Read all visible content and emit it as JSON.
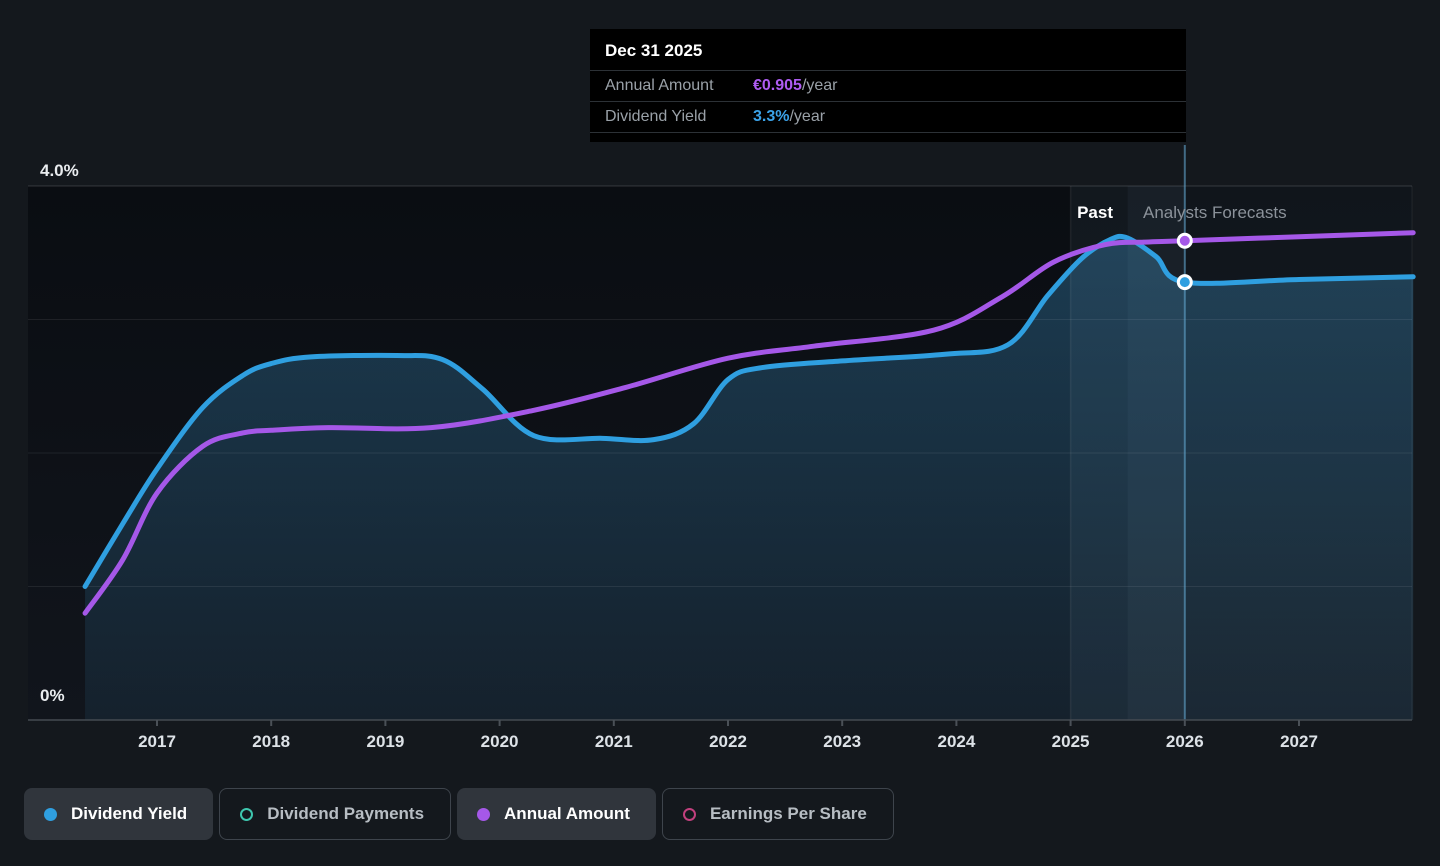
{
  "page": {
    "background": "#14181d"
  },
  "tooltip": {
    "title": "Dec 31 2025",
    "rows": [
      {
        "label": "Annual Amount",
        "value": "€0.905",
        "suffix": "/year",
        "value_color": "#ae5cf2"
      },
      {
        "label": "Dividend Yield",
        "value": "3.3%",
        "suffix": "/year",
        "value_color": "#3ba2e8"
      }
    ]
  },
  "annotations": {
    "past_label": "Past",
    "forecast_label": "Analysts Forecasts"
  },
  "axes": {
    "y_top_label": "4.0%",
    "y_bottom_label": "0%"
  },
  "legend": [
    {
      "label": "Dividend Yield",
      "style": "filled",
      "color": "#2f9fe0",
      "active": true
    },
    {
      "label": "Dividend Payments",
      "style": "ring",
      "color": "#3ec6ae",
      "active": false
    },
    {
      "label": "Annual Amount",
      "style": "filled",
      "color": "#a558e8",
      "active": true
    },
    {
      "label": "Earnings Per Share",
      "style": "ring",
      "color": "#c2407e",
      "active": false
    }
  ],
  "chart_data": {
    "type": "area",
    "x_domain": [
      2016.37,
      2028.0
    ],
    "x_ticks": [
      2017,
      2018,
      2019,
      2020,
      2021,
      2022,
      2023,
      2024,
      2025,
      2026,
      2027
    ],
    "y_axis": {
      "unit": "%",
      "min": 0,
      "max": 4,
      "gridlines_pct": [
        1,
        2,
        3,
        4
      ],
      "labels_shown": [
        "4.0%",
        "0%"
      ]
    },
    "divider_year": 2025.5,
    "hover_band_years": [
      2025,
      2026
    ],
    "marker_year": 2026,
    "legend_position": "bottom",
    "series": [
      {
        "name": "Dividend Yield",
        "color": "#2f9fe0",
        "area": true,
        "marker": {
          "year": 2026,
          "value": 3.28,
          "display": "3.3%/year"
        },
        "points": [
          [
            2016.37,
            1.0
          ],
          [
            2016.7,
            1.47
          ],
          [
            2017.0,
            1.88
          ],
          [
            2017.4,
            2.34
          ],
          [
            2017.75,
            2.58
          ],
          [
            2018.0,
            2.67
          ],
          [
            2018.35,
            2.72
          ],
          [
            2019.1,
            2.73
          ],
          [
            2019.5,
            2.7
          ],
          [
            2019.85,
            2.48
          ],
          [
            2020.3,
            2.13
          ],
          [
            2020.9,
            2.11
          ],
          [
            2021.35,
            2.1
          ],
          [
            2021.7,
            2.22
          ],
          [
            2022.0,
            2.55
          ],
          [
            2022.3,
            2.64
          ],
          [
            2023.0,
            2.69
          ],
          [
            2023.9,
            2.74
          ],
          [
            2024.45,
            2.81
          ],
          [
            2024.8,
            3.18
          ],
          [
            2025.1,
            3.46
          ],
          [
            2025.35,
            3.6
          ],
          [
            2025.5,
            3.61
          ],
          [
            2025.75,
            3.47
          ],
          [
            2026.0,
            3.28
          ],
          [
            2027.0,
            3.3
          ],
          [
            2028.0,
            3.32
          ]
        ]
      },
      {
        "name": "Annual Amount",
        "color": "#a558e8",
        "area": false,
        "unit_note": "plotted on hidden EUR axis; tooltip shows €0.905/year at Dec 31 2025",
        "marker": {
          "year": 2026,
          "value": 3.59,
          "display": "€0.905/year"
        },
        "points": [
          [
            2016.37,
            0.8
          ],
          [
            2016.7,
            1.2
          ],
          [
            2017.0,
            1.7
          ],
          [
            2017.4,
            2.05
          ],
          [
            2017.75,
            2.15
          ],
          [
            2018.0,
            2.17
          ],
          [
            2018.5,
            2.19
          ],
          [
            2019.4,
            2.19
          ],
          [
            2020.3,
            2.32
          ],
          [
            2021.1,
            2.49
          ],
          [
            2022.0,
            2.71
          ],
          [
            2022.75,
            2.8
          ],
          [
            2023.8,
            2.92
          ],
          [
            2024.4,
            3.17
          ],
          [
            2024.85,
            3.43
          ],
          [
            2025.3,
            3.56
          ],
          [
            2025.65,
            3.58
          ],
          [
            2026.0,
            3.59
          ],
          [
            2027.0,
            3.62
          ],
          [
            2028.0,
            3.65
          ]
        ]
      }
    ]
  }
}
